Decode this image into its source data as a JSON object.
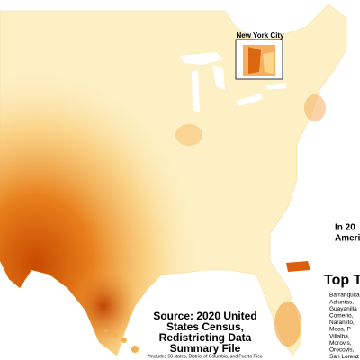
{
  "inset": {
    "title": "New York City"
  },
  "source": {
    "lines": [
      "Source: 2020 United",
      "States Census,",
      "Redistricting Data",
      "Summary File"
    ],
    "note": "*Includes 50 states, District of Columbia, and Puerto Rico"
  },
  "side_panel": {
    "heading_lines": [
      "In 20",
      "America"
    ],
    "list_title": "Top T",
    "list": [
      "Barranquita",
      "Adjuntas,",
      "Guayanilla",
      "Comerio,",
      "Naranjito,",
      "Moca, P",
      "Villalba,",
      "Morovis,",
      "Orocovis,",
      "San Lorenz"
    ]
  }
}
